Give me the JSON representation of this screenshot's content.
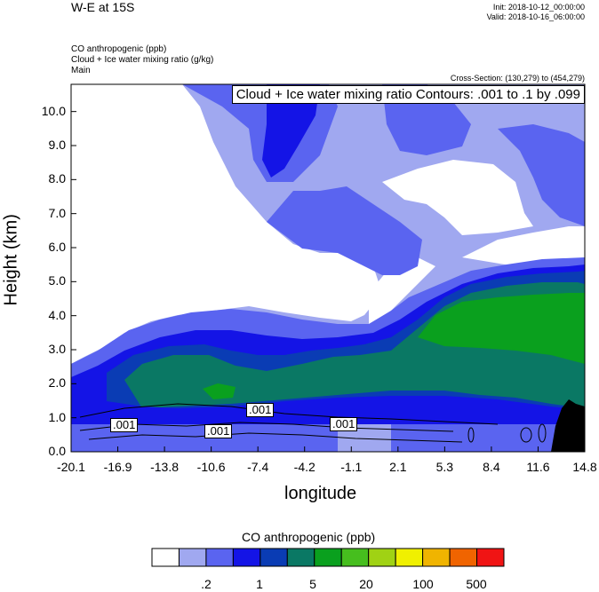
{
  "header": {
    "title": "W-E at 15S",
    "init": "Init: 2018-10-12_00:00:00",
    "valid": "Valid: 2018-10-16_06:00:00",
    "field1": "CO anthropogenic   (ppb)",
    "field2": "Cloud + Ice water mixing ratio   (g/kg)",
    "field3": "Main",
    "cross_section": "Cross-Section: (130,279) to (454,279)"
  },
  "chart_data": {
    "type": "heatmap",
    "title": "W-E at 15S",
    "contour_annotation": "Cloud + Ice water mixing ratio Contours: .001 to .1 by .099",
    "contour_labels": [
      ".001",
      ".001",
      ".001",
      ".001"
    ],
    "xlabel": "longitude",
    "ylabel": "Height (km)",
    "x_ticks": [
      "-20.1",
      "-16.9",
      "-13.8",
      "-10.6",
      "-7.4",
      "-4.2",
      "-1.1",
      "2.1",
      "5.3",
      "8.4",
      "11.6",
      "14.8"
    ],
    "y_ticks": [
      "0.0",
      "1.0",
      "2.0",
      "3.0",
      "4.0",
      "5.0",
      "6.0",
      "7.0",
      "8.0",
      "9.0",
      "10.0"
    ],
    "xlim": [
      -20.1,
      14.8
    ],
    "ylim": [
      0,
      10.8
    ],
    "colorbar": {
      "title": "CO anthropogenic  (ppb)",
      "colors": [
        "#ffffff",
        "#a0a8f0",
        "#5a64f0",
        "#1414e6",
        "#0a3cb4",
        "#0a7864",
        "#0aa01e",
        "#46be1e",
        "#a0d214",
        "#f0f000",
        "#f0b400",
        "#f06400",
        "#f01414"
      ],
      "labels": [
        ".2",
        "1",
        "5",
        "20",
        "100",
        "500"
      ]
    }
  }
}
